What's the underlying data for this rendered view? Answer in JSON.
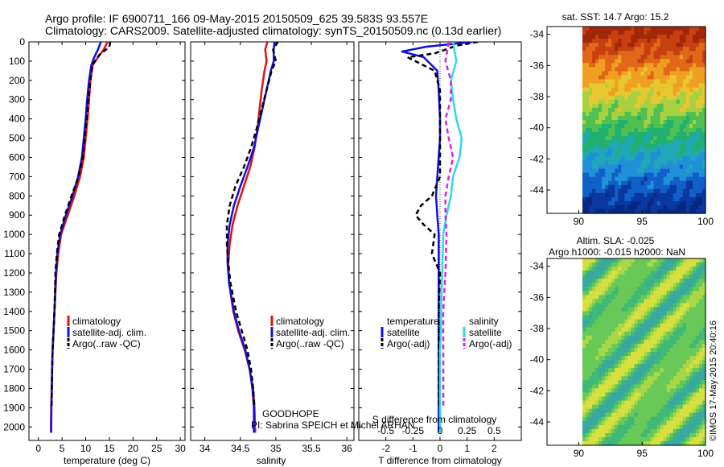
{
  "header": {
    "line1": "Argo profile: IF 6900711_166 09-May-2015 20150509_625 39.583S 93.557E",
    "line2": "Climatology: CARS2009. Satellite-adjusted climatology: synTS_20150509.nc (0.13d earlier)"
  },
  "program": {
    "name": "GOODHOPE",
    "pi": "PI: Sabrina SPEICH et Michel ARHAN"
  },
  "credit": "©IMOS 17-May-2015 20:40:16",
  "colors": {
    "climatology": "#e41010",
    "satellite_temp": "#1010e0",
    "satellite_sal": "#30d8e8",
    "argo_temp": "#000000",
    "argo_sal": "#e020e0"
  },
  "chart_data": [
    {
      "type": "line",
      "id": "temperature",
      "xlabel": "temperature (deg C)",
      "ylabel": "",
      "xlim": [
        -2,
        31
      ],
      "ylim": [
        2070,
        0
      ],
      "xticks": [
        "0",
        "5",
        "10",
        "15",
        "20",
        "25",
        "30"
      ],
      "yticks": [
        "0",
        "100",
        "200",
        "300",
        "400",
        "500",
        "600",
        "700",
        "800",
        "900",
        "1000",
        "1100",
        "1200",
        "1300",
        "1400",
        "1500",
        "1600",
        "1700",
        "1800",
        "1900",
        "2000"
      ],
      "legend": [
        "climatology",
        "satellite-adj. clim.",
        "Argo(..raw -QC)"
      ],
      "series": [
        {
          "name": "climatology",
          "style": "solid",
          "color": "climatology",
          "x": [
            14.6,
            13.8,
            12.6,
            11.5,
            11.0,
            10.7,
            10.4,
            10.0,
            9.6,
            8.8,
            7.6,
            6.2,
            4.8,
            4.2,
            3.8,
            3.4,
            3.2,
            3.0,
            2.9,
            2.8,
            2.7,
            2.65
          ],
          "y": [
            0,
            40,
            80,
            120,
            200,
            300,
            400,
            500,
            600,
            700,
            800,
            900,
            1000,
            1100,
            1200,
            1400,
            1500,
            1600,
            1700,
            1800,
            1900,
            2030
          ]
        },
        {
          "name": "satellite-adj. clim.",
          "style": "solid",
          "color": "satellite_temp",
          "x": [
            13.2,
            12.6,
            11.8,
            11.2,
            10.7,
            10.3,
            10.0,
            9.6,
            9.2,
            8.4,
            7.2,
            5.8,
            4.6,
            4.0,
            3.7,
            3.4,
            3.2,
            3.0,
            2.9,
            2.85,
            2.75,
            2.7
          ],
          "y": [
            0,
            40,
            80,
            120,
            200,
            300,
            400,
            500,
            600,
            700,
            800,
            900,
            1000,
            1100,
            1200,
            1400,
            1500,
            1600,
            1700,
            1800,
            1900,
            2030
          ]
        },
        {
          "name": "Argo(..raw -QC)",
          "style": "dashed",
          "color": "argo_temp",
          "x": [
            15.2,
            15.0,
            12.8,
            11.4,
            11.0,
            10.6,
            10.2,
            9.8,
            9.4,
            8.5,
            7.0,
            5.6,
            4.4,
            3.9,
            3.6,
            3.4,
            3.2,
            3.0,
            2.9,
            2.85,
            2.8
          ],
          "y": [
            0,
            25,
            70,
            120,
            200,
            300,
            400,
            500,
            600,
            700,
            800,
            900,
            1000,
            1100,
            1200,
            1400,
            1500,
            1600,
            1700,
            1800,
            1900
          ]
        }
      ]
    },
    {
      "type": "line",
      "id": "salinity",
      "xlabel": "salinity",
      "xlim": [
        33.8,
        36.1
      ],
      "ylim": [
        2070,
        0
      ],
      "xticks": [
        "34",
        "34.5",
        "35",
        "35.5",
        "36"
      ],
      "legend": [
        "climatology",
        "satellite-adj. clim.",
        "Argo(..raw -QC)"
      ],
      "series": [
        {
          "name": "climatology",
          "style": "solid",
          "color": "climatology",
          "x": [
            34.88,
            34.85,
            34.87,
            34.84,
            34.8,
            34.77,
            34.74,
            34.7,
            34.64,
            34.55,
            34.46,
            34.39,
            34.35,
            34.33,
            34.34,
            34.4,
            34.47,
            34.56,
            34.63,
            34.68,
            34.7,
            34.71
          ],
          "y": [
            0,
            40,
            100,
            150,
            250,
            350,
            450,
            550,
            650,
            750,
            850,
            950,
            1050,
            1150,
            1250,
            1400,
            1500,
            1600,
            1700,
            1800,
            1900,
            2030
          ]
        },
        {
          "name": "satellite-adj. clim.",
          "style": "solid",
          "color": "satellite_temp",
          "x": [
            34.98,
            34.97,
            34.97,
            34.93,
            34.87,
            34.81,
            34.75,
            34.69,
            34.6,
            34.5,
            34.41,
            34.35,
            34.32,
            34.32,
            34.34,
            34.41,
            34.48,
            34.57,
            34.63,
            34.67,
            34.69,
            34.69
          ],
          "y": [
            0,
            40,
            100,
            150,
            250,
            350,
            450,
            550,
            650,
            750,
            850,
            950,
            1050,
            1150,
            1250,
            1400,
            1500,
            1600,
            1700,
            1800,
            1900,
            2030
          ]
        },
        {
          "name": "Argo(..raw -QC)",
          "style": "dashed",
          "color": "argo_temp",
          "x": [
            35.03,
            34.96,
            35.0,
            34.94,
            34.87,
            34.8,
            34.73,
            34.65,
            34.55,
            34.43,
            34.35,
            34.31,
            34.31,
            34.33,
            34.36,
            34.44,
            34.52,
            34.6,
            34.65,
            34.68,
            34.7
          ],
          "y": [
            0,
            40,
            100,
            150,
            250,
            350,
            450,
            550,
            650,
            750,
            850,
            950,
            1050,
            1150,
            1250,
            1400,
            1500,
            1600,
            1700,
            1800,
            1900
          ]
        }
      ]
    },
    {
      "type": "line",
      "id": "differences",
      "xlabel": "T difference from climatology",
      "xlabel2": "S difference from climatology",
      "xlim": [
        -3,
        3
      ],
      "ylim": [
        2070,
        0
      ],
      "xticks_t": [
        "-2",
        "-1",
        "0",
        "1",
        "2"
      ],
      "xticks_s": [
        "-0.5",
        "-0.25",
        "0",
        "0.25",
        "0.5"
      ],
      "legend_titles": [
        "temperature",
        "salinity"
      ],
      "legend": [
        "satellite",
        "Argo(-adj)",
        "satellite",
        "Argo(-adj)"
      ],
      "series": [
        {
          "name": "satellite",
          "quantity": "temperature",
          "style": "solid",
          "color": "satellite_temp",
          "x": [
            1.2,
            -0.5,
            -1.4,
            -0.6,
            -0.1,
            -0.05,
            0.0,
            0.0,
            -0.05,
            -0.1,
            -0.15,
            -0.1,
            -0.05,
            -0.05,
            -0.05,
            -0.05,
            -0.05,
            -0.05,
            -0.05,
            -0.05
          ],
          "y": [
            0,
            25,
            50,
            80,
            150,
            250,
            400,
            500,
            600,
            700,
            800,
            900,
            1000,
            1200,
            1400,
            1500,
            1600,
            1700,
            1800,
            2030
          ]
        },
        {
          "name": "Argo(-adj)",
          "quantity": "temperature",
          "style": "dashed",
          "color": "argo_temp",
          "x": [
            1.4,
            0.6,
            -0.2,
            -1.2,
            -0.2,
            0.0,
            0.0,
            0.0,
            -0.3,
            -0.7,
            -0.9,
            -0.6,
            -0.2,
            -0.3,
            0.0,
            -0.05,
            -0.05,
            -0.05,
            -0.05,
            -0.05,
            -0.05
          ],
          "y": [
            0,
            20,
            60,
            80,
            150,
            250,
            400,
            700,
            800,
            850,
            900,
            950,
            1000,
            1100,
            1200,
            1400,
            1500,
            1600,
            1700,
            1800,
            1900
          ]
        },
        {
          "name": "satellite",
          "quantity": "salinity",
          "style": "solid",
          "color": "satellite_sal",
          "x": [
            0.12,
            0.15,
            0.1,
            0.12,
            0.15,
            0.2,
            0.18,
            0.12,
            0.1,
            0.06,
            0.03,
            0.02,
            0.01,
            0.01,
            0.0,
            0.0,
            0.0,
            0.0
          ],
          "y": [
            0,
            100,
            200,
            300,
            400,
            500,
            600,
            700,
            800,
            900,
            1000,
            1200,
            1400,
            1500,
            1600,
            1700,
            1800,
            2030
          ]
        },
        {
          "name": "Argo(-adj)",
          "quantity": "salinity",
          "style": "dashed",
          "color": "argo_sal",
          "x": [
            0.08,
            0.05,
            0.1,
            0.1,
            0.05,
            0.08,
            0.12,
            0.08,
            0.05,
            0.05,
            0.06,
            0.05,
            0.03,
            0.03,
            0.03
          ],
          "y": [
            0,
            100,
            200,
            300,
            400,
            500,
            600,
            700,
            800,
            900,
            1000,
            1200,
            1400,
            1600,
            1900
          ]
        }
      ]
    },
    {
      "type": "heatmap",
      "id": "sst_map",
      "title": "sat. SST: 14.7 Argo: 15.2",
      "xlim": [
        87.5,
        100
      ],
      "ylim": [
        -45.5,
        -33.5
      ],
      "xticks": [
        "90",
        "95",
        "100"
      ],
      "yticks": [
        "-34",
        "-36",
        "-38",
        "-40",
        "-42",
        "-44"
      ]
    },
    {
      "type": "heatmap",
      "id": "sla_map",
      "title": "Altim. SLA: -0.025",
      "title2": "Argo h1000: -0.015 h2000: NaN",
      "xlim": [
        87.5,
        100
      ],
      "ylim": [
        -45.5,
        -33.5
      ],
      "xticks": [
        "90",
        "95",
        "100"
      ],
      "yticks": [
        "-34",
        "-36",
        "-38",
        "-40",
        "-42",
        "-44"
      ]
    }
  ]
}
